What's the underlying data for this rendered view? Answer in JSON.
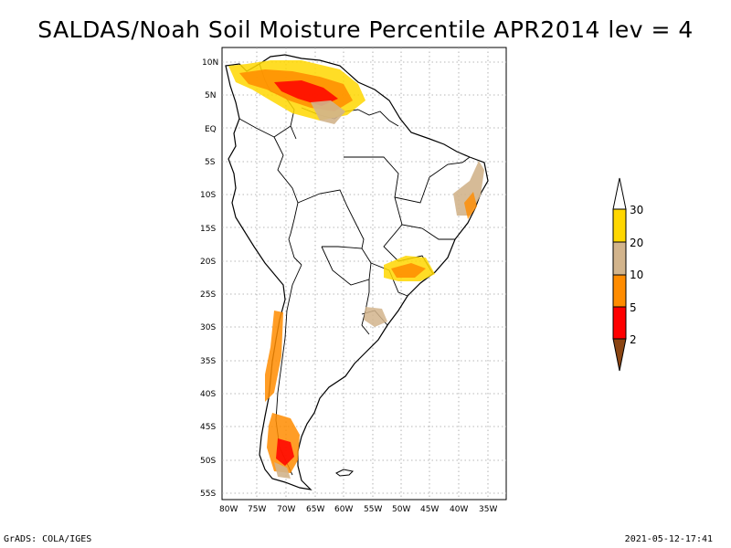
{
  "title": "SALDAS/Noah Soil Moisture Percentile APR2014 lev = 4",
  "footer": {
    "left": "GrADS: COLA/IGES",
    "right": "2021-05-12-17:41"
  },
  "map": {
    "lat_labels": [
      "10N",
      "5N",
      "EQ",
      "5S",
      "10S",
      "15S",
      "20S",
      "25S",
      "30S",
      "35S",
      "40S",
      "45S",
      "50S",
      "55S"
    ],
    "lon_labels": [
      "80W",
      "75W",
      "70W",
      "65W",
      "60W",
      "55W",
      "50W",
      "45W",
      "40W",
      "35W"
    ],
    "grid_lines": true
  },
  "legend": {
    "labels": [
      "30",
      "20",
      "10",
      "5",
      "2"
    ],
    "colors": {
      "above_30": "#ffffff",
      "20_30": "#ffd700",
      "10_20": "#d2b48c",
      "5_10": "#ff8c00",
      "2_5": "#ff0000",
      "below_2": "#8b4513"
    }
  }
}
